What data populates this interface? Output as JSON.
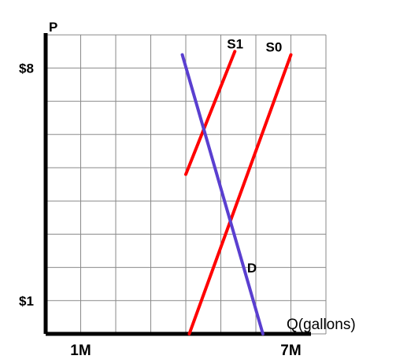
{
  "chart_data": {
    "type": "line",
    "title": "",
    "xlabel": "Q(gallons)",
    "ylabel": "P",
    "x_tick_labels": [
      {
        "x": 1,
        "label": "1M"
      },
      {
        "x": 7,
        "label": "7M"
      }
    ],
    "y_tick_labels": [
      {
        "y": 1,
        "label": "$1"
      },
      {
        "y": 8,
        "label": "$8"
      }
    ],
    "xlim": [
      0,
      8
    ],
    "ylim": [
      0,
      9
    ],
    "grid": true,
    "series": [
      {
        "name": "S1",
        "color": "#ff0000",
        "points": [
          [
            4.0,
            4.8
          ],
          [
            5.4,
            8.5
          ]
        ]
      },
      {
        "name": "S0",
        "color": "#ff0000",
        "points": [
          [
            4.1,
            0.0
          ],
          [
            7.0,
            8.4
          ]
        ]
      },
      {
        "name": "D",
        "color": "#5a3fd0",
        "points": [
          [
            3.9,
            8.4
          ],
          [
            6.2,
            0.0
          ]
        ]
      }
    ]
  }
}
